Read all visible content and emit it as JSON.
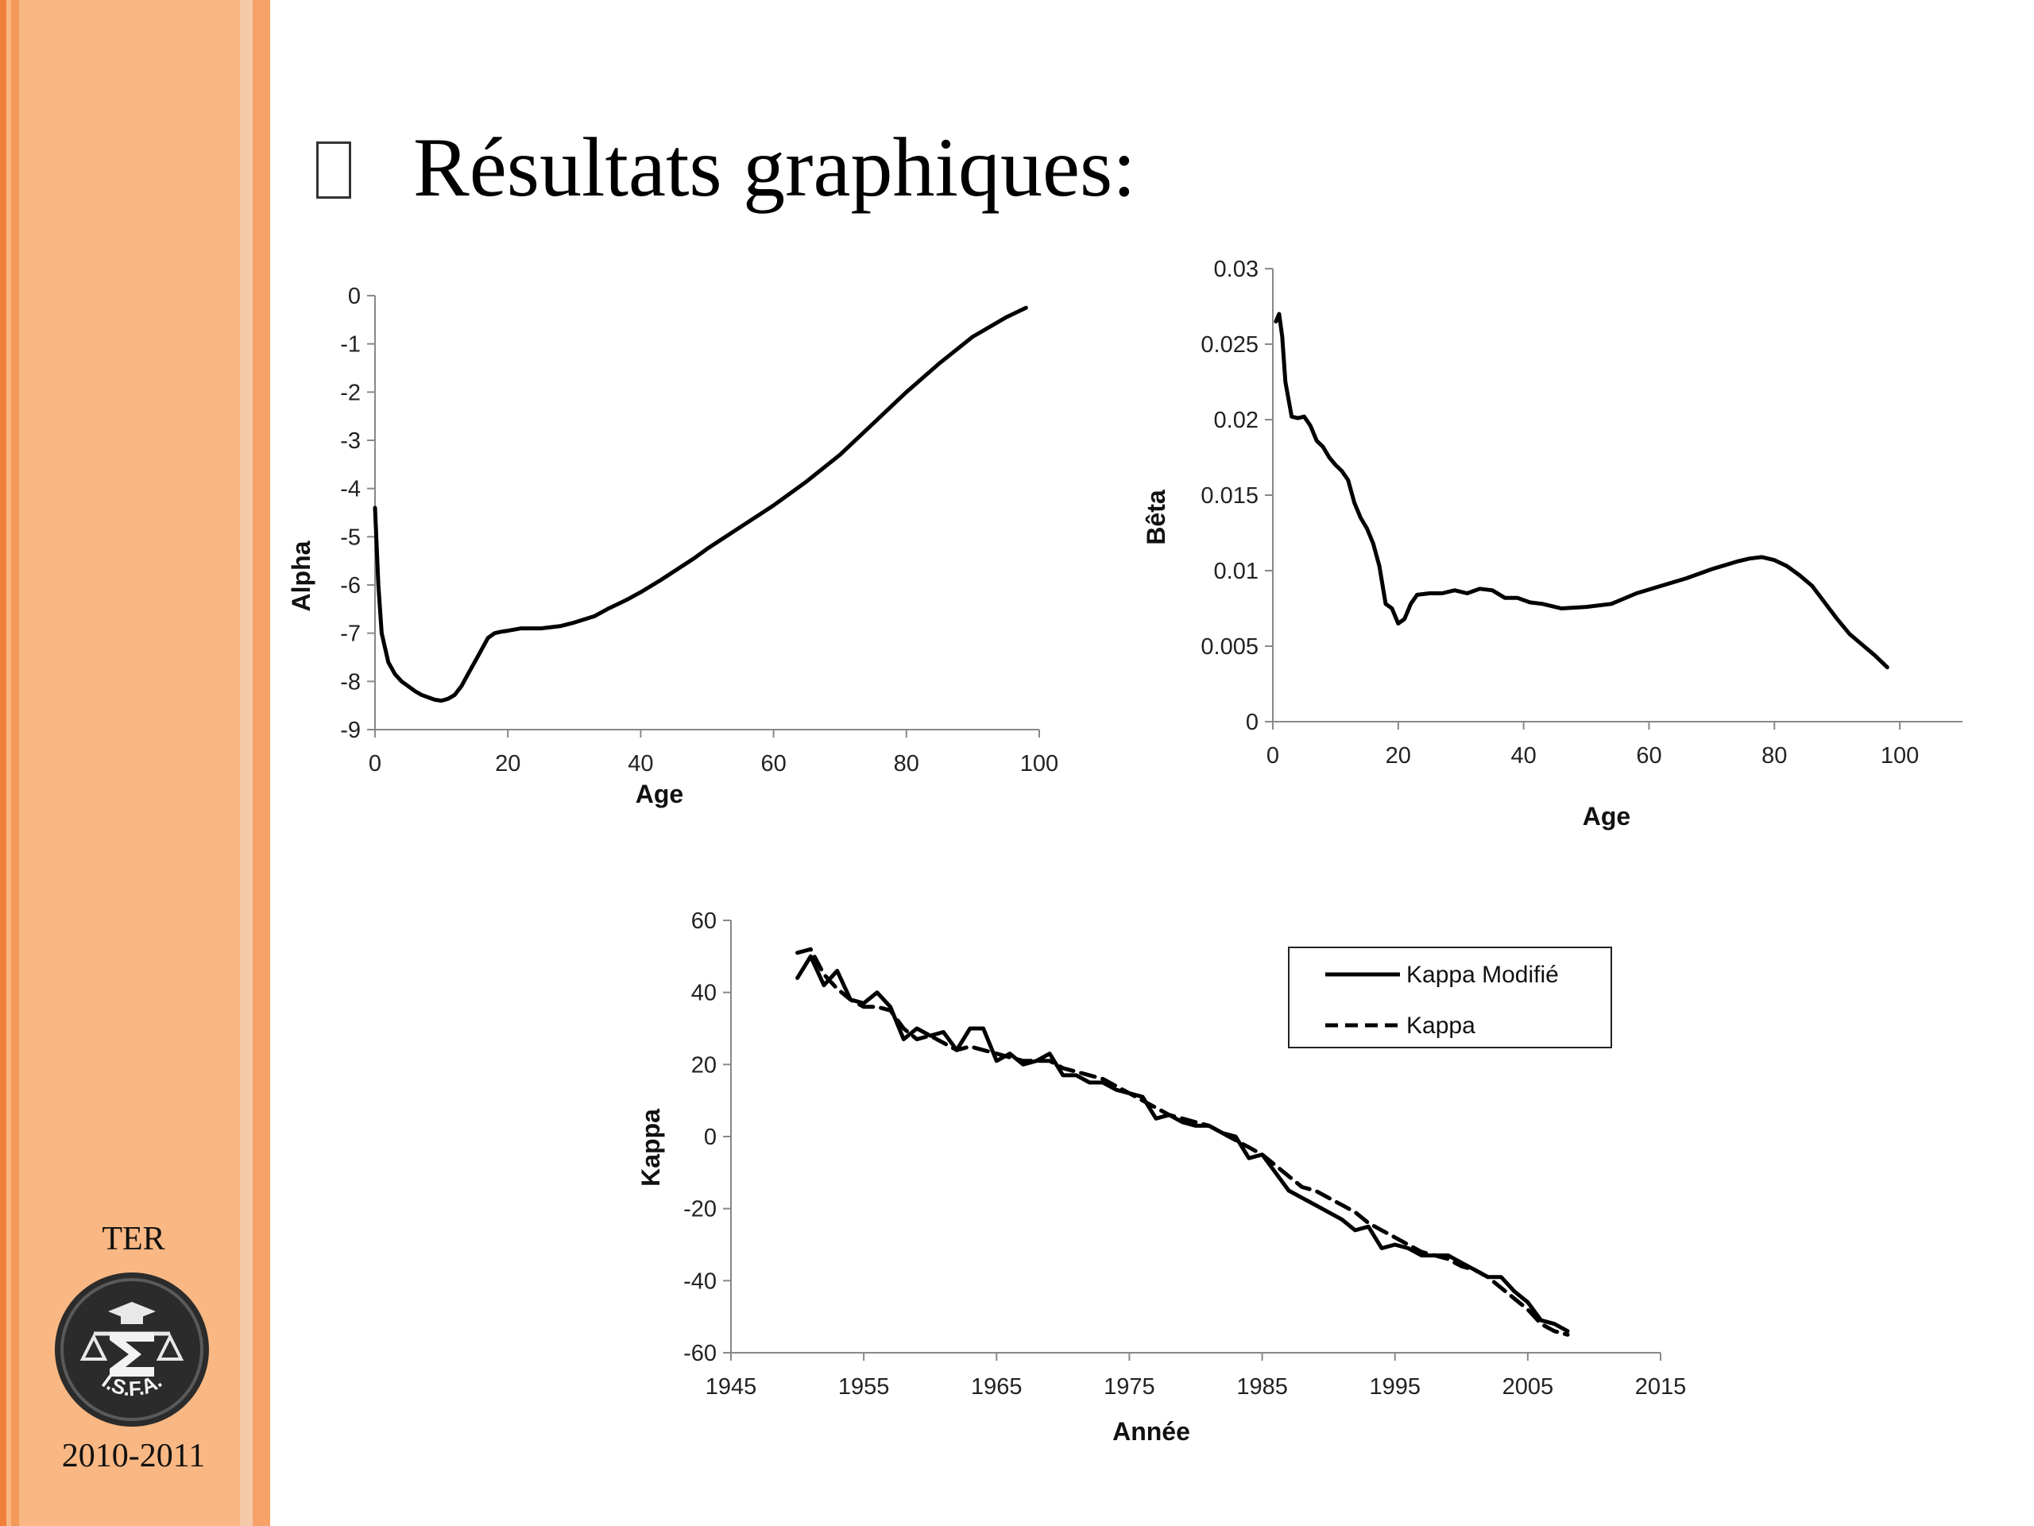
{
  "slide": {
    "title": "Résultats graphiques:",
    "footer_label": "TER",
    "footer_years": "2010-2011",
    "logo_text": "I.S.F.A.",
    "colors": {
      "sidebar": "#f8b783",
      "stripe": "#f07f3a",
      "line": "#000000"
    }
  },
  "chart_data": [
    {
      "id": "alpha",
      "type": "line",
      "xlabel": "Age",
      "ylabel": "Alpha",
      "xlim": [
        0,
        100
      ],
      "ylim": [
        -9,
        0
      ],
      "xticks": [
        0,
        20,
        40,
        60,
        80,
        100
      ],
      "yticks": [
        0,
        -1,
        -2,
        -3,
        -4,
        -5,
        -6,
        -7,
        -8,
        -9
      ],
      "series": [
        {
          "style": "solid",
          "x": [
            0,
            0.5,
            1,
            2,
            3,
            4,
            5,
            6,
            7,
            8,
            9,
            10,
            11,
            12,
            13,
            14,
            15,
            16,
            17,
            18,
            19,
            20,
            22,
            25,
            28,
            30,
            33,
            35,
            38,
            40,
            43,
            45,
            48,
            50,
            55,
            60,
            65,
            70,
            75,
            80,
            85,
            90,
            95,
            98
          ],
          "y": [
            -4.4,
            -6.0,
            -7.0,
            -7.6,
            -7.85,
            -8.0,
            -8.1,
            -8.2,
            -8.28,
            -8.33,
            -8.38,
            -8.4,
            -8.36,
            -8.28,
            -8.1,
            -7.85,
            -7.6,
            -7.35,
            -7.1,
            -7.0,
            -6.97,
            -6.95,
            -6.9,
            -6.9,
            -6.85,
            -6.78,
            -6.65,
            -6.5,
            -6.3,
            -6.15,
            -5.9,
            -5.72,
            -5.45,
            -5.25,
            -4.8,
            -4.35,
            -3.85,
            -3.3,
            -2.65,
            -2.0,
            -1.4,
            -0.85,
            -0.45,
            -0.25
          ]
        }
      ]
    },
    {
      "id": "beta",
      "type": "line",
      "xlabel": "Age",
      "ylabel": "Bêta",
      "xlim": [
        0,
        110
      ],
      "ylim": [
        0,
        0.03
      ],
      "xticks": [
        0,
        20,
        40,
        60,
        80,
        100
      ],
      "yticks": [
        0,
        0.005,
        0.01,
        0.015,
        0.02,
        0.025,
        0.03
      ],
      "series": [
        {
          "style": "solid",
          "x": [
            0.5,
            1,
            1.5,
            2,
            3,
            4,
            5,
            6,
            7,
            8,
            9,
            10,
            11,
            12,
            13,
            14,
            15,
            16,
            17,
            18,
            19,
            20,
            21,
            22,
            23,
            25,
            27,
            29,
            31,
            33,
            35,
            37,
            39,
            41,
            43,
            46,
            50,
            54,
            58,
            62,
            66,
            70,
            74,
            76,
            78,
            80,
            82,
            84,
            86,
            88,
            90,
            92,
            94,
            96,
            98
          ],
          "y": [
            0.0265,
            0.027,
            0.0255,
            0.0225,
            0.0202,
            0.0201,
            0.0202,
            0.0196,
            0.0186,
            0.0182,
            0.0175,
            0.017,
            0.0166,
            0.016,
            0.0145,
            0.0135,
            0.0128,
            0.0118,
            0.0103,
            0.0078,
            0.0075,
            0.0065,
            0.0068,
            0.0078,
            0.0084,
            0.0085,
            0.0085,
            0.0087,
            0.0085,
            0.0088,
            0.0087,
            0.0082,
            0.0082,
            0.0079,
            0.0078,
            0.0075,
            0.0076,
            0.0078,
            0.0085,
            0.009,
            0.0095,
            0.0101,
            0.0106,
            0.0108,
            0.0109,
            0.0107,
            0.0103,
            0.0097,
            0.009,
            0.0079,
            0.0068,
            0.0058,
            0.0051,
            0.0044,
            0.0036
          ]
        }
      ]
    },
    {
      "id": "kappa",
      "type": "line",
      "xlabel": "Année",
      "ylabel": "Kappa",
      "xlim": [
        1945,
        2015
      ],
      "ylim": [
        -60,
        60
      ],
      "xticks": [
        1945,
        1955,
        1965,
        1975,
        1985,
        1995,
        2005,
        2015
      ],
      "yticks": [
        60,
        40,
        20,
        0,
        -20,
        -40,
        -60
      ],
      "legend_position": "top-right",
      "series": [
        {
          "name": "Kappa Modifié",
          "style": "solid",
          "x": [
            1950,
            1951,
            1952,
            1953,
            1954,
            1955,
            1956,
            1957,
            1958,
            1959,
            1960,
            1961,
            1962,
            1963,
            1964,
            1965,
            1966,
            1967,
            1968,
            1969,
            1970,
            1971,
            1972,
            1973,
            1974,
            1975,
            1976,
            1977,
            1978,
            1979,
            1980,
            1981,
            1982,
            1983,
            1984,
            1985,
            1986,
            1987,
            1988,
            1989,
            1990,
            1991,
            1992,
            1993,
            1994,
            1995,
            1996,
            1997,
            1998,
            1999,
            2000,
            2001,
            2002,
            2003,
            2004,
            2005,
            2006,
            2007,
            2008
          ],
          "y": [
            44,
            50,
            42,
            46,
            38,
            37,
            40,
            36,
            27,
            30,
            28,
            29,
            24,
            30,
            30,
            21,
            23,
            20,
            21,
            23,
            17,
            17,
            15,
            15,
            13,
            12,
            11,
            5,
            6,
            4,
            3,
            3,
            1,
            0,
            -6,
            -5,
            -10,
            -15,
            -17,
            -19,
            -21,
            -23,
            -26,
            -25,
            -31,
            -30,
            -31,
            -33,
            -33,
            -33,
            -35,
            -37,
            -39,
            -39,
            -43,
            -46,
            -51,
            -52,
            -54
          ]
        },
        {
          "name": "Kappa",
          "style": "dashed",
          "x": [
            1950,
            1951,
            1952,
            1953,
            1954,
            1955,
            1956,
            1957,
            1958,
            1959,
            1960,
            1961,
            1962,
            1963,
            1964,
            1965,
            1966,
            1967,
            1968,
            1969,
            1970,
            1971,
            1972,
            1973,
            1974,
            1975,
            1976,
            1977,
            1978,
            1979,
            1980,
            1981,
            1982,
            1983,
            1984,
            1985,
            1986,
            1987,
            1988,
            1989,
            1990,
            1991,
            1992,
            1993,
            1994,
            1995,
            1996,
            1997,
            1998,
            1999,
            2000,
            2001,
            2002,
            2003,
            2004,
            2005,
            2006,
            2007,
            2008
          ],
          "y": [
            51,
            52,
            45,
            41,
            38,
            36,
            36,
            35,
            30,
            27,
            28,
            26,
            24,
            25,
            24,
            23,
            22,
            21,
            21,
            21,
            19,
            18,
            17,
            16,
            14,
            12,
            10,
            8,
            6,
            5,
            4,
            3,
            1,
            -1,
            -3,
            -5,
            -8,
            -11,
            -14,
            -15,
            -17,
            -19,
            -21,
            -24,
            -26,
            -28,
            -30,
            -32,
            -33,
            -34,
            -36,
            -37,
            -39,
            -42,
            -45,
            -48,
            -52,
            -54,
            -55
          ]
        }
      ]
    }
  ]
}
